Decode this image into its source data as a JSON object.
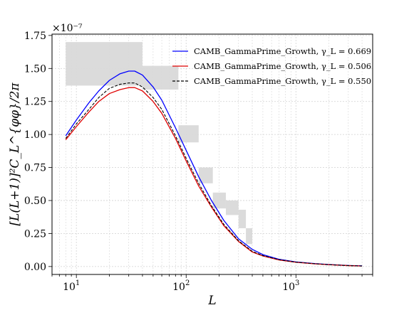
{
  "chart_data": {
    "type": "line",
    "xlabel": "L",
    "ylabel": "[L(L+1)]²C_L^{φφ}/2π",
    "x_scale": "log",
    "xlim": [
      6,
      5000
    ],
    "ylim": [
      -0.06,
      1.76
    ],
    "y_multiplier": "×10⁻⁷",
    "y_ticks": [
      0.0,
      0.25,
      0.5,
      0.75,
      1.0,
      1.25,
      1.5,
      1.75
    ],
    "y_tick_labels": [
      "0.00",
      "0.25",
      "0.50",
      "0.75",
      "1.00",
      "1.25",
      "1.50",
      "1.75"
    ],
    "x_ticks": [
      10,
      100,
      1000
    ],
    "x_tick_labels": [
      {
        "base": "10",
        "exp": "1"
      },
      {
        "base": "10",
        "exp": "2"
      },
      {
        "base": "10",
        "exp": "3"
      }
    ],
    "grid": true,
    "legend_position": "top-right",
    "series": [
      {
        "name": "CAMB_GammaPrime_Growth, γ_L = 0.669",
        "color": "#0000ff",
        "dash": "solid",
        "x": [
          8,
          10,
          13,
          16,
          20,
          25,
          30,
          34,
          40,
          50,
          60,
          80,
          100,
          130,
          170,
          220,
          300,
          400,
          500,
          700,
          1000,
          1500,
          2000,
          3000,
          4000
        ],
        "y": [
          0.99,
          1.11,
          1.24,
          1.33,
          1.41,
          1.46,
          1.48,
          1.48,
          1.45,
          1.36,
          1.26,
          1.05,
          0.88,
          0.68,
          0.5,
          0.35,
          0.21,
          0.13,
          0.09,
          0.055,
          0.035,
          0.022,
          0.015,
          0.008,
          0.005
        ]
      },
      {
        "name": "CAMB_GammaPrime_Growth, γ_L = 0.506",
        "color": "#e00000",
        "dash": "solid",
        "x": [
          8,
          10,
          13,
          16,
          20,
          25,
          30,
          34,
          40,
          50,
          60,
          80,
          100,
          130,
          170,
          220,
          300,
          400,
          500,
          700,
          1000,
          1500,
          2000,
          3000,
          4000
        ],
        "y": [
          0.96,
          1.06,
          1.17,
          1.25,
          1.31,
          1.34,
          1.355,
          1.355,
          1.33,
          1.25,
          1.16,
          0.97,
          0.8,
          0.61,
          0.45,
          0.31,
          0.19,
          0.11,
          0.08,
          0.05,
          0.032,
          0.02,
          0.014,
          0.007,
          0.004
        ]
      },
      {
        "name": "CAMB_GammaPrime_Growth, γ_L = 0.550",
        "color": "#000000",
        "dash": "dashed",
        "x": [
          8,
          10,
          13,
          16,
          20,
          25,
          30,
          34,
          40,
          50,
          60,
          80,
          100,
          130,
          170,
          220,
          300,
          400,
          500,
          700,
          1000,
          1500,
          2000,
          3000,
          4000
        ],
        "y": [
          0.97,
          1.08,
          1.19,
          1.28,
          1.35,
          1.38,
          1.39,
          1.39,
          1.36,
          1.28,
          1.19,
          0.99,
          0.82,
          0.63,
          0.46,
          0.32,
          0.195,
          0.115,
          0.083,
          0.052,
          0.033,
          0.021,
          0.014,
          0.007,
          0.004
        ]
      }
    ],
    "error_boxes": [
      {
        "x": [
          8,
          40
        ],
        "y": [
          1.37,
          1.7
        ]
      },
      {
        "x": [
          40,
          85
        ],
        "y": [
          1.34,
          1.52
        ]
      },
      {
        "x": [
          85,
          130
        ],
        "y": [
          0.94,
          1.07
        ]
      },
      {
        "x": [
          130,
          175
        ],
        "y": [
          0.63,
          0.75
        ]
      },
      {
        "x": [
          175,
          230
        ],
        "y": [
          0.44,
          0.56
        ]
      },
      {
        "x": [
          230,
          300
        ],
        "y": [
          0.39,
          0.5
        ]
      },
      {
        "x": [
          300,
          350
        ],
        "y": [
          0.29,
          0.43
        ]
      },
      {
        "x": [
          350,
          400
        ],
        "y": [
          0.17,
          0.29
        ]
      }
    ],
    "box_color": "#d9d9d9"
  }
}
